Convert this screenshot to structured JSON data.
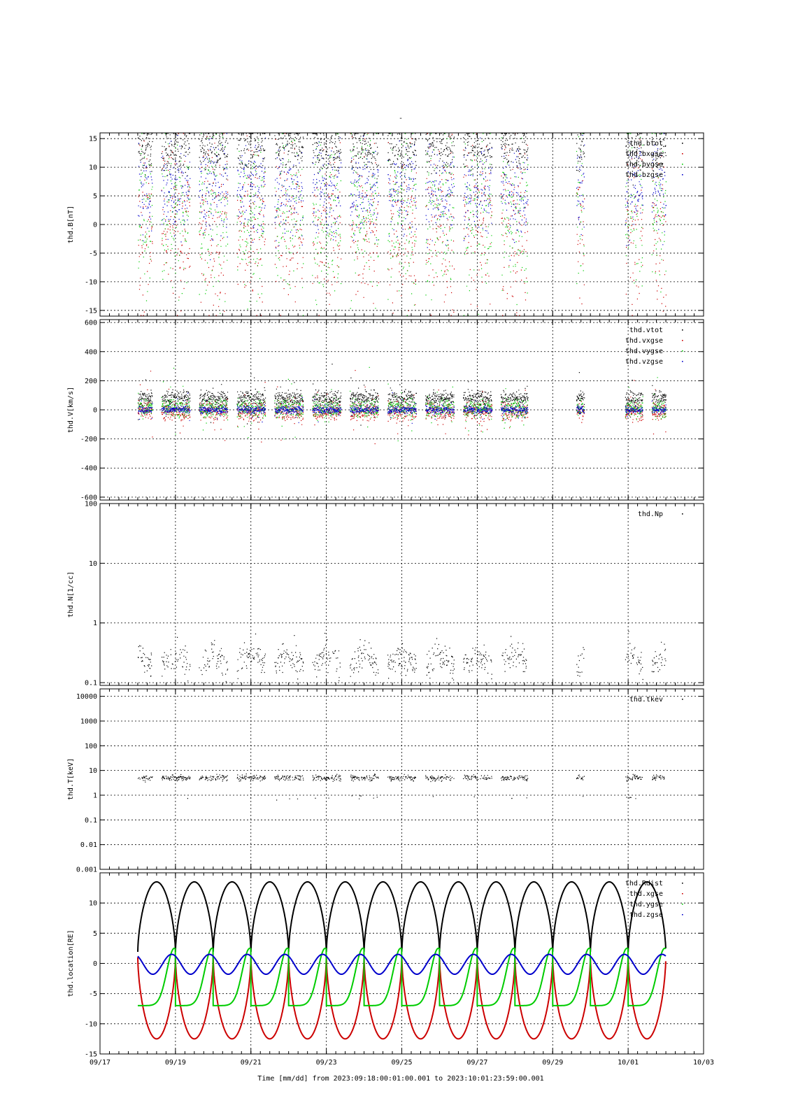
{
  "figure": {
    "top_title": "-",
    "time_axis_label": "Time [mm/dd]  from 2023:09:18:00:01:00.001  to  2023:10:01:23:59:00.001",
    "colors": {
      "black": "#000000",
      "red": "#cc0000",
      "green": "#00cc00",
      "blue": "#0000cc",
      "grid": "#000000"
    }
  },
  "chart_data": [
    {
      "type": "scatter",
      "ylabel": "thd.B[nT]",
      "yscale": "linear",
      "ylim": [
        -16,
        16
      ],
      "yticks": [
        -15,
        -10,
        -5,
        0,
        5,
        10,
        15
      ],
      "ytick_labels": [
        "-15",
        "-10",
        "-5",
        "0",
        "5",
        "10",
        "15"
      ],
      "legend_position": "top-right",
      "series": [
        {
          "name": "thd.btot",
          "color": "#000000"
        },
        {
          "name": "thd.bxgse",
          "color": "#cc0000"
        },
        {
          "name": "thd.bygse",
          "color": "#00cc00"
        },
        {
          "name": "thd.bzgse",
          "color": "#0000cc"
        }
      ]
    },
    {
      "type": "scatter",
      "ylabel": "thd.V[km/s]",
      "yscale": "linear",
      "ylim": [
        -620,
        620
      ],
      "yticks": [
        -600,
        -400,
        -200,
        0,
        200,
        400,
        600
      ],
      "ytick_labels": [
        "-600",
        "-400",
        "-200",
        "0",
        "200",
        "400",
        "600"
      ],
      "legend_position": "top-right",
      "series": [
        {
          "name": "thd.vtot",
          "color": "#000000"
        },
        {
          "name": "thd.vxgse",
          "color": "#cc0000"
        },
        {
          "name": "thd.vygse",
          "color": "#00cc00"
        },
        {
          "name": "thd.vzgse",
          "color": "#0000cc"
        }
      ]
    },
    {
      "type": "scatter",
      "ylabel": "thd.N[1/cc]",
      "yscale": "log",
      "ylim": [
        0.09,
        100
      ],
      "yticks": [
        0.1,
        1,
        10,
        100
      ],
      "ytick_labels": [
        "0.1",
        "1",
        "10",
        "100"
      ],
      "legend_position": "top-right",
      "series": [
        {
          "name": "thd.Np",
          "color": "#000000"
        }
      ]
    },
    {
      "type": "scatter",
      "ylabel": "thd.T[keV]",
      "yscale": "log",
      "ylim": [
        0.001,
        20000
      ],
      "yticks": [
        0.001,
        0.01,
        0.1,
        1,
        10,
        100,
        1000,
        10000
      ],
      "ytick_labels": [
        "0.001",
        "0.01",
        "0.1",
        "1",
        "10",
        "100",
        "1000",
        "10000"
      ],
      "legend_position": "top-right",
      "series": [
        {
          "name": "thd.tkev",
          "color": "#000000"
        }
      ]
    },
    {
      "type": "line",
      "ylabel": "thd.location[RE]",
      "yscale": "linear",
      "ylim": [
        -15,
        15
      ],
      "yticks": [
        -15,
        -10,
        -5,
        0,
        5,
        10
      ],
      "ytick_labels": [
        "-15",
        "-10",
        "-5",
        "0",
        "5",
        "10"
      ],
      "legend_position": "top-right",
      "series": [
        {
          "name": "thd.Rdist",
          "color": "#000000"
        },
        {
          "name": "thd.xgse",
          "color": "#cc0000"
        },
        {
          "name": "thd.ygse",
          "color": "#00cc00"
        },
        {
          "name": "thd.zgse",
          "color": "#0000cc"
        }
      ],
      "orbit_model": {
        "period_days": 1.0,
        "apogee_dates": [
          "09/18 12:00",
          "09/19 12:00",
          "09/20 12:00",
          "09/21 12:00",
          "09/22 12:00",
          "09/23 12:00",
          "09/24 12:00",
          "09/25 12:00",
          "09/26 12:00",
          "09/27 12:00",
          "09/28 12:00",
          "09/29 12:00",
          "09/30 12:00",
          "10/01 12:00"
        ],
        "rdist_range": [
          1.5,
          13.5
        ],
        "xgse_range": [
          -12.5,
          1.5
        ],
        "ygse_range": [
          -7,
          2.5
        ],
        "zgse_range": [
          -1.8,
          1.5
        ]
      }
    }
  ],
  "x_axis": {
    "scale": "time",
    "xlim": [
      "09/17",
      "10/03"
    ],
    "major_ticks": [
      "09/17",
      "09/19",
      "09/21",
      "09/23",
      "09/25",
      "09/27",
      "09/29",
      "10/01",
      "10/03"
    ],
    "minor_tick_interval_hours": 6
  },
  "data_gaps": [
    "09/28 08:00 - 09/29 12:00",
    "09/29 20:00 - 09/30 22:00"
  ]
}
